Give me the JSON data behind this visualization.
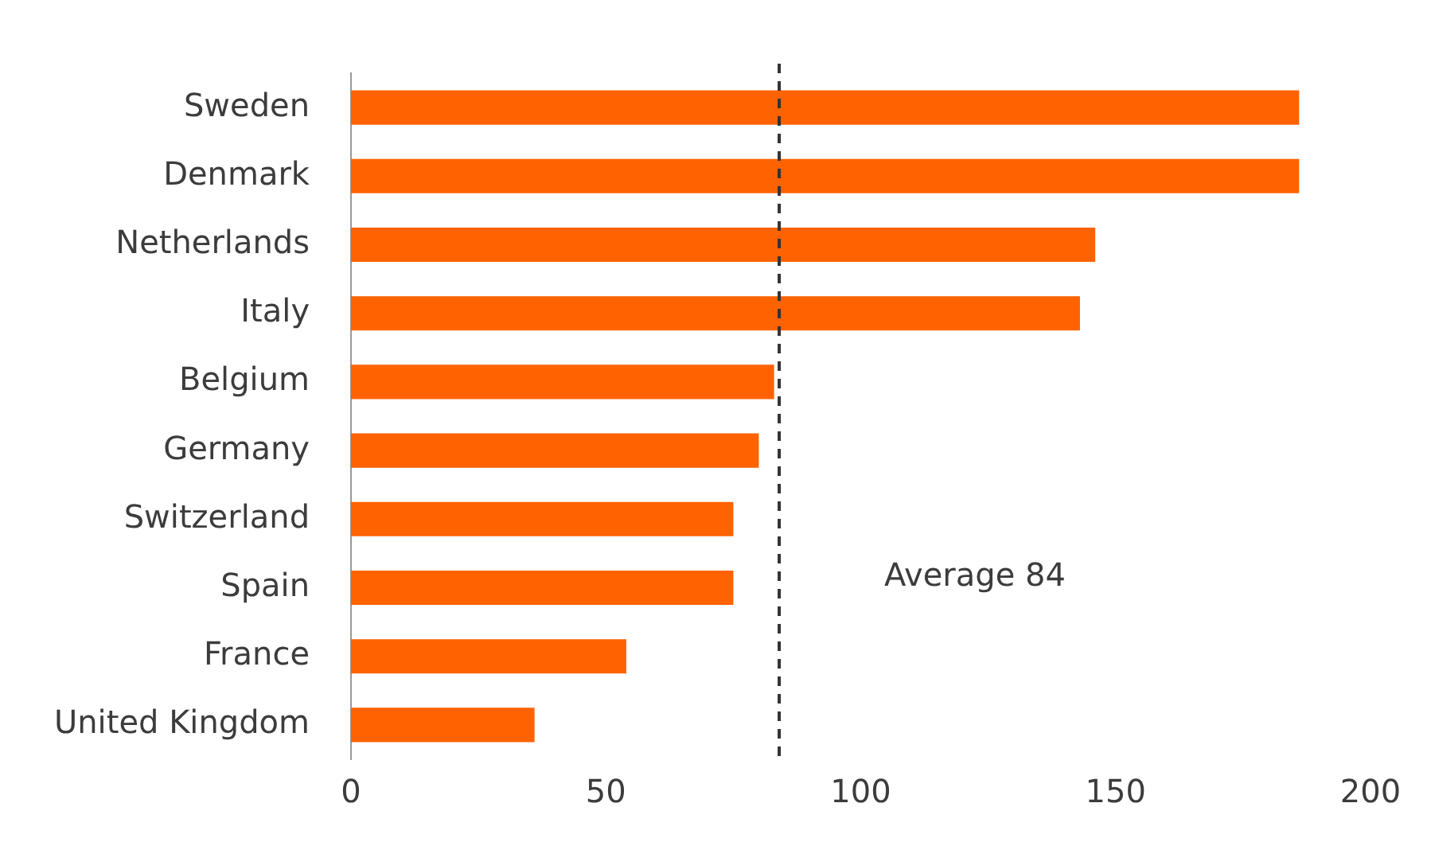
{
  "chart_data": {
    "type": "bar",
    "orientation": "horizontal",
    "categories": [
      "Sweden",
      "Denmark",
      "Netherlands",
      "Italy",
      "Belgium",
      "Germany",
      "Switzerland",
      "Spain",
      "France",
      "United Kingdom"
    ],
    "values": [
      186,
      186,
      146,
      143,
      83,
      80,
      75,
      75,
      54,
      36
    ],
    "color": "#ff6200",
    "xlim": [
      0,
      200
    ],
    "xticks": [
      0,
      50,
      100,
      150,
      200
    ],
    "grid": false,
    "legend": false,
    "ref_lines": [
      {
        "axis": "x",
        "value": 84,
        "label": "Average 84",
        "color": "#333333",
        "line_style": "dashed"
      }
    ]
  }
}
